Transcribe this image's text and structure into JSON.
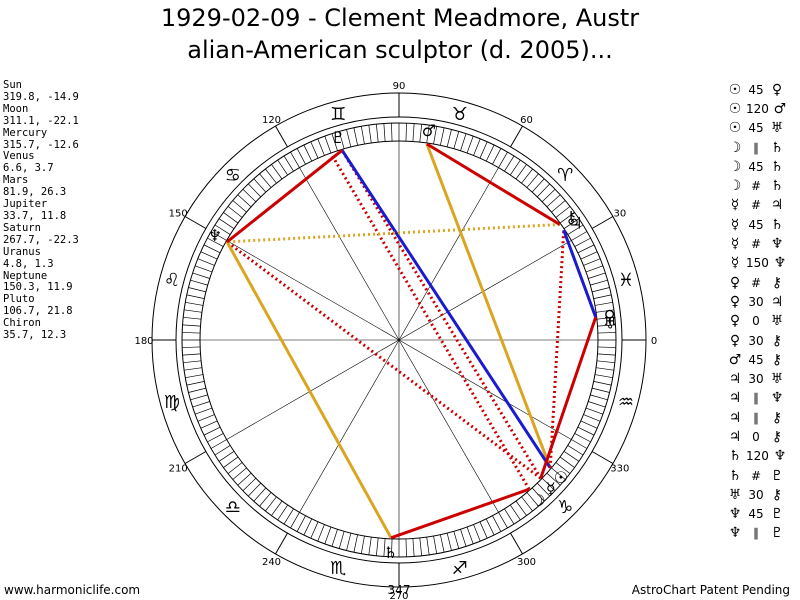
{
  "header": {
    "title_line1": "1929-02-09 - Clement Meadmore, Austr",
    "title_line2": "alian-American sculptor (d. 2005)..."
  },
  "planets": [
    {
      "name": "Sun",
      "coords": "319.8, -14.9",
      "symbol": "☉",
      "lon": 319.8
    },
    {
      "name": "Moon",
      "coords": "311.1, -22.1",
      "symbol": "☽",
      "lon": 311.1
    },
    {
      "name": "Mercury",
      "coords": "315.7, -12.6",
      "symbol": "☿",
      "lon": 315.7
    },
    {
      "name": "Venus",
      "coords": "6.6, 3.7",
      "symbol": "♀",
      "lon": 6.6
    },
    {
      "name": "Mars",
      "coords": "81.9, 26.3",
      "symbol": "♂",
      "lon": 81.9
    },
    {
      "name": "Jupiter",
      "coords": "33.7, 11.8",
      "symbol": "♃",
      "lon": 33.7
    },
    {
      "name": "Saturn",
      "coords": "267.7, -22.3",
      "symbol": "♄",
      "lon": 267.7
    },
    {
      "name": "Uranus",
      "coords": "4.8, 1.3",
      "symbol": "♅",
      "lon": 4.8
    },
    {
      "name": "Neptune",
      "coords": "150.3, 11.9",
      "symbol": "♆",
      "lon": 150.3
    },
    {
      "name": "Pluto",
      "coords": "106.7, 21.8",
      "symbol": "♇",
      "lon": 106.7
    },
    {
      "name": "Chiron",
      "coords": "35.7, 12.3",
      "symbol": "⚷",
      "lon": 35.7
    }
  ],
  "aspects": [
    {
      "p1": "☉",
      "angle": "45",
      "p2": "♀"
    },
    {
      "p1": "☉",
      "angle": "120",
      "p2": "♂"
    },
    {
      "p1": "☉",
      "angle": "45",
      "p2": "♅"
    },
    {
      "p1": "☽",
      "angle": "∥",
      "p2": "♄"
    },
    {
      "p1": "☽",
      "angle": "45",
      "p2": "♄"
    },
    {
      "p1": "☽",
      "angle": "#",
      "p2": "♄"
    },
    {
      "p1": "☿",
      "angle": "#",
      "p2": "♃"
    },
    {
      "p1": "☿",
      "angle": "45",
      "p2": "♄"
    },
    {
      "p1": "☿",
      "angle": "#",
      "p2": "♆"
    },
    {
      "p1": "☿",
      "angle": "150",
      "p2": "♆"
    },
    {
      "p1": "♀",
      "angle": "#",
      "p2": "⚷"
    },
    {
      "p1": "♀",
      "angle": "30",
      "p2": "♃"
    },
    {
      "p1": "♀",
      "angle": "0",
      "p2": "♅"
    },
    {
      "p1": "♀",
      "angle": "30",
      "p2": "⚷"
    },
    {
      "p1": "♂",
      "angle": "45",
      "p2": "⚷"
    },
    {
      "p1": "♃",
      "angle": "30",
      "p2": "♅"
    },
    {
      "p1": "♃",
      "angle": "∥",
      "p2": "♆"
    },
    {
      "p1": "♃",
      "angle": "∥",
      "p2": "⚷"
    },
    {
      "p1": "♃",
      "angle": "0",
      "p2": "⚷"
    },
    {
      "p1": "♄",
      "angle": "120",
      "p2": "♆"
    },
    {
      "p1": "♄",
      "angle": "#",
      "p2": "♇"
    },
    {
      "p1": "♅",
      "angle": "30",
      "p2": "⚷"
    },
    {
      "p1": "♆",
      "angle": "45",
      "p2": "♇"
    },
    {
      "p1": "♆",
      "angle": "∥",
      "p2": "♇"
    }
  ],
  "wheel": {
    "degree_labels": [
      {
        "deg": 0,
        "text": "0"
      },
      {
        "deg": 30,
        "text": "30"
      },
      {
        "deg": 60,
        "text": "60"
      },
      {
        "deg": 90,
        "text": "90"
      },
      {
        "deg": 120,
        "text": "120"
      },
      {
        "deg": 150,
        "text": "150"
      },
      {
        "deg": 180,
        "text": "180"
      },
      {
        "deg": 210,
        "text": "210"
      },
      {
        "deg": 240,
        "text": "240"
      },
      {
        "deg": 270,
        "text": "270"
      },
      {
        "deg": 300,
        "text": "300"
      },
      {
        "deg": 330,
        "text": "330"
      }
    ],
    "signs": [
      "♓",
      "♈",
      "♉",
      "♊",
      "♋",
      "♌",
      "♍",
      "♎",
      "♏",
      "♐",
      "♑",
      "♒"
    ],
    "ascendant_label": "347"
  },
  "aspect_lines": [
    {
      "a": 319.8,
      "b": 81.9,
      "color": "#daa520",
      "style": "solid"
    },
    {
      "a": 315.7,
      "b": 150.3,
      "color": "#cc0000",
      "style": "dotted"
    },
    {
      "a": 315.7,
      "b": 106.7,
      "color": "#cc0000",
      "style": "dotted"
    },
    {
      "a": 319.8,
      "b": 106.7,
      "color": "#1a1ad0",
      "style": "solid"
    },
    {
      "a": 311.1,
      "b": 110.0,
      "color": "#cc0000",
      "style": "dotted"
    },
    {
      "a": 319.8,
      "b": 33.7,
      "color": "#cc0000",
      "style": "dotted"
    },
    {
      "a": 35.7,
      "b": 150.3,
      "color": "#daa520",
      "style": "dotted"
    },
    {
      "a": 267.7,
      "b": 150.3,
      "color": "#daa520",
      "style": "solid"
    },
    {
      "a": 33.7,
      "b": 6.6,
      "color": "#1a1ad0",
      "style": "solid"
    },
    {
      "a": 6.6,
      "b": 315.7,
      "color": "#cc0000",
      "style": "solid"
    },
    {
      "a": 311.1,
      "b": 267.7,
      "color": "#cc0000",
      "style": "solid"
    },
    {
      "a": 106.7,
      "b": 150.3,
      "color": "#cc0000",
      "style": "solid"
    },
    {
      "a": 81.9,
      "b": 35.7,
      "color": "#cc0000",
      "style": "solid"
    }
  ],
  "colors": {
    "red": "#cc0000",
    "blue": "#1a1ad0",
    "gold": "#daa520"
  },
  "footer": {
    "left": "www.harmoniclife.com",
    "right": "AstroChart Patent Pending"
  }
}
